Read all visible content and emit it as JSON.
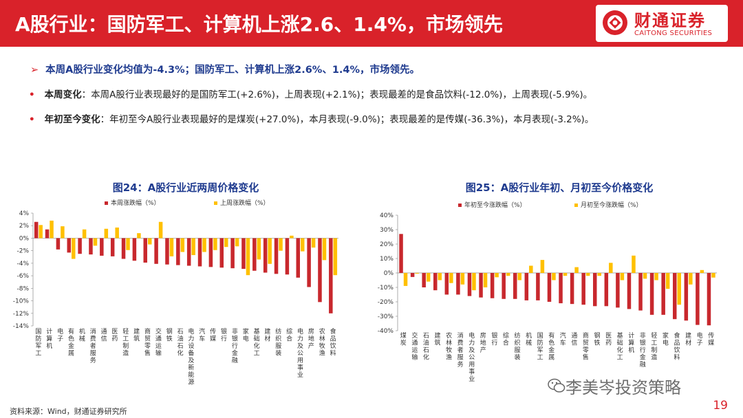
{
  "header": {
    "title": "A股行业：国防军工、计算机上涨2.6、1.4%，市场领先",
    "logo_cn": "财通证券",
    "logo_en": "CAITONG SECURITIES"
  },
  "bullets": {
    "main": "本周A股行业变化均值为-4.3%；国防军工、计算机上涨2.6%、1.4%，市场领先。",
    "weekly_key": "本周变化",
    "weekly_text": "：本周A股行业表现最好的是国防军工(+2.6%)，上周表现(+2.1%)；表现最差的是食品饮料(-12.0%)，上周表现(-5.9%)。",
    "ytd_key": "年初至今变化",
    "ytd_text": "：年初至今A股行业表现最好的是煤炭(+27.0%)，本月表现(-9.0%)；表现最差的是传媒(-36.3%)，本月表现(-3.2%)。"
  },
  "chart_data": [
    {
      "type": "bar",
      "title": "图24：A股行业近两周价格变化",
      "ylim": [
        -14,
        4
      ],
      "yticks": [
        "4%",
        "2%",
        "0%",
        "-2%",
        "-4%",
        "-6%",
        "-8%",
        "-10%",
        "-12%",
        "-14%"
      ],
      "legend_position": "top",
      "categories": [
        "国防军工",
        "计算机",
        "电子",
        "有色金属",
        "机械",
        "消费者服务",
        "通信",
        "医药",
        "轻工制造",
        "建筑",
        "商贸零售",
        "交通运输",
        "钢铁",
        "石油石化",
        "电力设备及新能源",
        "汽车",
        "传媒",
        "银行",
        "非银行金融",
        "家电",
        "基础化工",
        "建材",
        "纺织服装",
        "综合",
        "电力及公用事业",
        "房地产",
        "农林牧渔",
        "食品饮料"
      ],
      "series": [
        {
          "name": "本周涨跌幅（%）",
          "color": "#c8282d",
          "values": [
            2.6,
            1.4,
            -1.8,
            -2.3,
            -2.5,
            -2.6,
            -2.8,
            -2.9,
            -3.3,
            -3.6,
            -3.9,
            -4.1,
            -4.2,
            -4.3,
            -4.4,
            -4.5,
            -4.6,
            -4.7,
            -4.8,
            -4.9,
            -5.2,
            -5.5,
            -5.7,
            -5.8,
            -6.3,
            -7.8,
            -10.2,
            -12.0
          ]
        },
        {
          "name": "上周涨跌幅（%）",
          "color": "#ffc000",
          "values": [
            2.1,
            2.8,
            1.9,
            -3.3,
            1.4,
            -1.2,
            1.5,
            1.7,
            -1.9,
            0.8,
            -1.0,
            2.6,
            -2.9,
            -2.2,
            -2.7,
            -2.2,
            -1.9,
            -1.4,
            -1.3,
            -5.9,
            -3.4,
            -4.1,
            -2.0,
            0.4,
            -2.1,
            -1.5,
            -3.5,
            -5.9
          ]
        }
      ]
    },
    {
      "type": "bar",
      "title": "图25：A股行业年初、月初至今价格变化",
      "ylim": [
        -40,
        40
      ],
      "yticks": [
        "40%",
        "30%",
        "20%",
        "10%",
        "0%",
        "-10%",
        "-20%",
        "-30%",
        "-40%"
      ],
      "legend_position": "top",
      "categories": [
        "煤炭",
        "交通运输",
        "石油石化",
        "建筑",
        "农林牧渔",
        "消费者服务",
        "电力及公用事业",
        "房地产",
        "银行",
        "综合",
        "纺织服装",
        "机械",
        "国防军工",
        "有色金属",
        "汽车",
        "通信",
        "商贸零售",
        "钢铁",
        "医药",
        "基础化工",
        "计算机",
        "非银行金融",
        "轻工制造",
        "家电",
        "食品饮料",
        "建材",
        "电子",
        "传媒"
      ],
      "series": [
        {
          "name": "年初至今涨跌幅（%）",
          "color": "#c8282d",
          "values": [
            27.0,
            -2.8,
            -10.0,
            -12.0,
            -15.0,
            -15.0,
            -16.0,
            -17.0,
            -17.5,
            -18.0,
            -18.0,
            -19.0,
            -19.0,
            -20.0,
            -21.0,
            -21.5,
            -22.0,
            -23.0,
            -23.0,
            -24.0,
            -25.0,
            -26.0,
            -29.0,
            -29.0,
            -32.0,
            -33.0,
            -36.0,
            -36.3
          ]
        },
        {
          "name": "月初至今涨跌幅（%）",
          "color": "#ffc000",
          "values": [
            -9.0,
            -0.5,
            -6.0,
            -5.0,
            -7.0,
            -8.0,
            -12.0,
            -10.0,
            -3.0,
            -2.0,
            -5.0,
            5.0,
            9.0,
            -5.0,
            -2.0,
            4.0,
            -2.0,
            -2.0,
            7.0,
            -5.0,
            12.0,
            -4.0,
            -5.0,
            -11.0,
            -22.0,
            -8.0,
            2.0,
            -3.2
          ]
        }
      ]
    }
  ],
  "footer": {
    "source": "资料来源：Wind，财通证券研究所",
    "watermark": "李美岑投资策略",
    "page_number": "19"
  }
}
